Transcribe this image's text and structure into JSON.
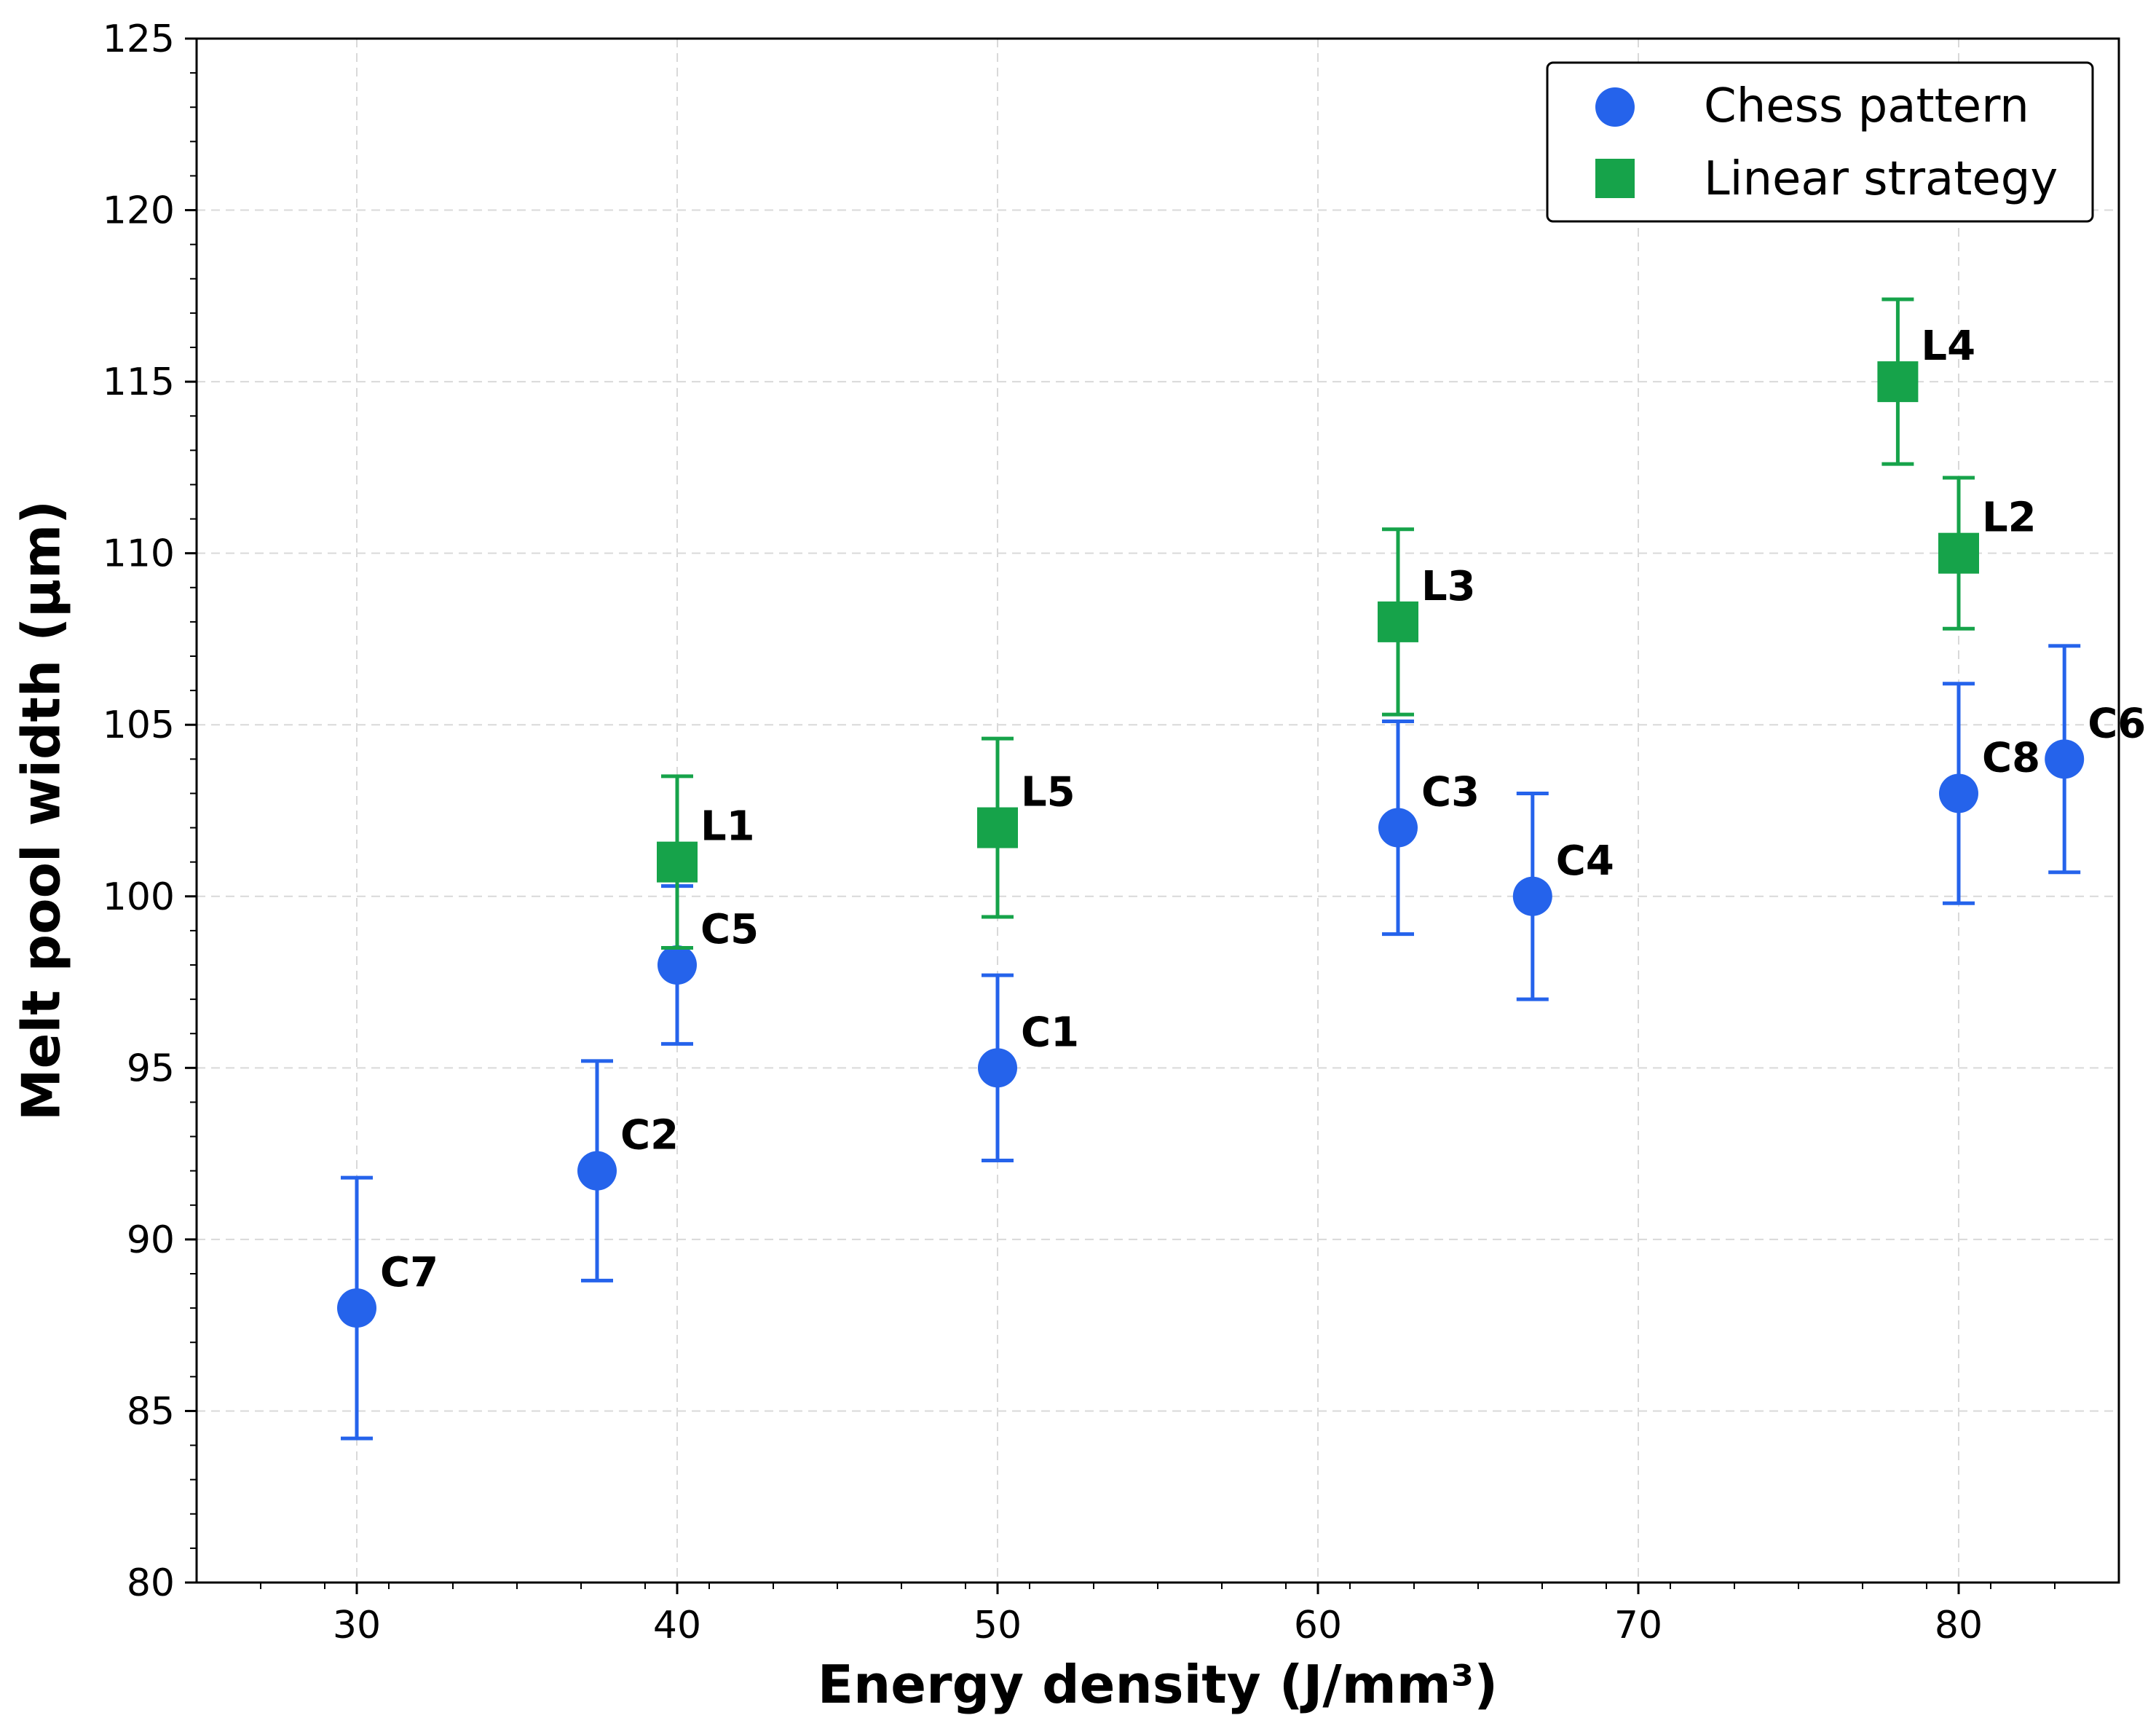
{
  "chart_data": {
    "type": "scatter",
    "title": "",
    "xlabel": "Energy density (J/mm³)",
    "ylabel": "Melt pool width (µm)",
    "xlim": [
      25,
      85
    ],
    "ylim": [
      80,
      125
    ],
    "xticks": [
      30,
      40,
      50,
      60,
      70,
      80
    ],
    "yticks": [
      80,
      85,
      90,
      95,
      100,
      105,
      110,
      115,
      120,
      125
    ],
    "grid": true,
    "legend_position": "top-right",
    "series": [
      {
        "name": "Chess pattern",
        "marker": "circle",
        "color": "#2563eb",
        "points": [
          {
            "label": "C7",
            "x": 30,
            "y": 88,
            "err": 3.8
          },
          {
            "label": "C2",
            "x": 37.5,
            "y": 92,
            "err": 3.2
          },
          {
            "label": "C5",
            "x": 40,
            "y": 98,
            "err": 2.3
          },
          {
            "label": "C1",
            "x": 50,
            "y": 95,
            "err": 2.7
          },
          {
            "label": "C3",
            "x": 62.5,
            "y": 102,
            "err": 3.1
          },
          {
            "label": "C4",
            "x": 66.7,
            "y": 100,
            "err": 3.0
          },
          {
            "label": "C8",
            "x": 80,
            "y": 103,
            "err": 3.2
          },
          {
            "label": "C6",
            "x": 83.3,
            "y": 104,
            "err": 3.3
          }
        ]
      },
      {
        "name": "Linear strategy",
        "marker": "square",
        "color": "#16a34a",
        "points": [
          {
            "label": "L1",
            "x": 40,
            "y": 101,
            "err": 2.5
          },
          {
            "label": "L5",
            "x": 50,
            "y": 102,
            "err": 2.6
          },
          {
            "label": "L3",
            "x": 62.5,
            "y": 108,
            "err": 2.7
          },
          {
            "label": "L4",
            "x": 78.1,
            "y": 115,
            "err": 2.4
          },
          {
            "label": "L2",
            "x": 80,
            "y": 110,
            "err": 2.2
          }
        ]
      }
    ]
  }
}
